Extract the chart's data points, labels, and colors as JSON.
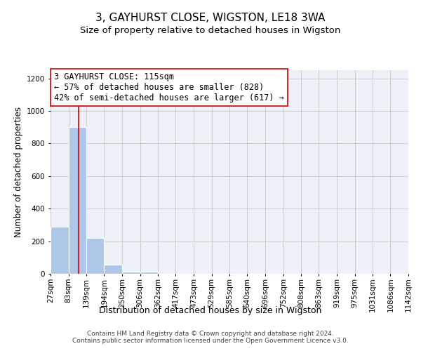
{
  "title": "3, GAYHURST CLOSE, WIGSTON, LE18 3WA",
  "subtitle": "Size of property relative to detached houses in Wigston",
  "xlabel": "Distribution of detached houses by size in Wigston",
  "ylabel": "Number of detached properties",
  "bar_values": [
    290,
    900,
    220,
    55,
    15,
    15,
    0,
    0,
    0,
    0,
    0,
    0,
    0,
    0,
    0,
    0,
    0,
    0,
    0,
    0
  ],
  "bin_edges": [
    27,
    83,
    139,
    194,
    250,
    306,
    362,
    417,
    473,
    529,
    585,
    640,
    696,
    752,
    808,
    863,
    919,
    975,
    1031,
    1086,
    1142
  ],
  "bar_color": "#aec6e8",
  "ylim": [
    0,
    1250
  ],
  "yticks": [
    0,
    200,
    400,
    600,
    800,
    1000,
    1200
  ],
  "grid_color": "#cccccc",
  "bg_color": "#eef2f8",
  "property_line_x": 115,
  "property_line_color": "#cc0000",
  "annotation_text": "3 GAYHURST CLOSE: 115sqm\n← 57% of detached houses are smaller (828)\n42% of semi-detached houses are larger (617) →",
  "annotation_box_color": "#ffffff",
  "annotation_box_edge": "#cc0000",
  "footer_text": "Contains HM Land Registry data © Crown copyright and database right 2024.\nContains public sector information licensed under the Open Government Licence v3.0.",
  "title_fontsize": 11,
  "subtitle_fontsize": 9.5,
  "xlabel_fontsize": 9,
  "ylabel_fontsize": 8.5,
  "tick_fontsize": 7.5,
  "annotation_fontsize": 8.5,
  "footer_fontsize": 6.5
}
